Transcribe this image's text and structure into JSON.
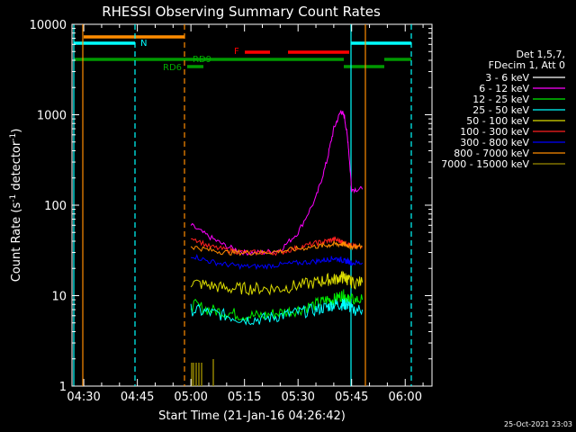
{
  "chart_data": {
    "type": "line",
    "title": "RHESSI Observing Summary Count Rates",
    "xlabel": "Start Time (21-Jan-16 04:26:42)",
    "ylabel_main": "Count Rate (s",
    "ylabel_sup1": "-1",
    "ylabel_mid": " detector",
    "ylabel_sup2": "-1",
    "ylabel_end": ")",
    "yscale": "log",
    "ylim": [
      1,
      10000
    ],
    "xlim": [
      "04:26:42",
      "06:07:30"
    ],
    "x_tick_labels": [
      "04:30",
      "04:45",
      "05:00",
      "05:15",
      "05:30",
      "05:45",
      "06:00"
    ],
    "y_tick_labels": [
      "1",
      "10",
      "100",
      "1000",
      "10000"
    ],
    "legend_header": [
      "Det 1,5,7,",
      "FDecim 1, Att 0"
    ],
    "legend": [
      {
        "label": "3 - 6 keV",
        "color": "#000000"
      },
      {
        "label": "6 - 12 keV",
        "color": "#ff00ff"
      },
      {
        "label": "12 - 25 keV",
        "color": "#00ee00"
      },
      {
        "label": "25 - 50 keV",
        "color": "#00ffff"
      },
      {
        "label": "50 - 100 keV",
        "color": "#dddd00"
      },
      {
        "label": "100 - 300 keV",
        "color": "#ff2020"
      },
      {
        "label": "300 - 800 keV",
        "color": "#0000ff"
      },
      {
        "label": "800 - 7000 keV",
        "color": "#ff8c00"
      },
      {
        "label": "7000 - 15000 keV",
        "color": "#9b8b00"
      }
    ],
    "flag_labels": {
      "N": "N",
      "RD9": "RD9",
      "RD6": "RD6",
      "F": "F"
    },
    "series_times": [
      "05:00",
      "05:05",
      "05:10",
      "05:15",
      "05:20",
      "05:25",
      "05:30",
      "05:35",
      "05:38",
      "05:40",
      "05:42",
      "05:43",
      "05:44",
      "05:45",
      "05:48"
    ],
    "series": [
      {
        "color": "#000000",
        "values": [
          150,
          152,
          155,
          158,
          160,
          160,
          165,
          175,
          200,
          350,
          500,
          480,
          400,
          150,
          150
        ]
      },
      {
        "color": "#ff00ff",
        "values": [
          60,
          45,
          35,
          30,
          30,
          32,
          50,
          120,
          300,
          700,
          1100,
          950,
          500,
          150,
          150
        ]
      },
      {
        "color": "#00ee00",
        "values": [
          8,
          7,
          6.5,
          6,
          6,
          6.5,
          7,
          8,
          9,
          9,
          10,
          10,
          9,
          9,
          9
        ]
      },
      {
        "color": "#00ffff",
        "values": [
          7,
          6.5,
          6,
          5.5,
          5.5,
          6,
          6.5,
          7,
          7.5,
          8,
          8,
          8,
          8,
          7,
          7
        ]
      },
      {
        "color": "#dddd00",
        "values": [
          14,
          13,
          12,
          12,
          12,
          12,
          13,
          14,
          15,
          15,
          16,
          16,
          15,
          14,
          14
        ]
      },
      {
        "color": "#ff2020",
        "values": [
          45,
          35,
          32,
          30,
          30,
          30,
          34,
          38,
          40,
          42,
          40,
          38,
          37,
          35,
          34
        ]
      },
      {
        "color": "#0000ff",
        "values": [
          28,
          24,
          22,
          21,
          21,
          22,
          23,
          24,
          25,
          26,
          25,
          24,
          24,
          23,
          23
        ]
      },
      {
        "color": "#ff8c00",
        "values": [
          35,
          32,
          30,
          30,
          30,
          31,
          33,
          35,
          36,
          37,
          37,
          37,
          36,
          35,
          35
        ]
      }
    ],
    "timestamp": "25-Oct-2021 23:03"
  }
}
